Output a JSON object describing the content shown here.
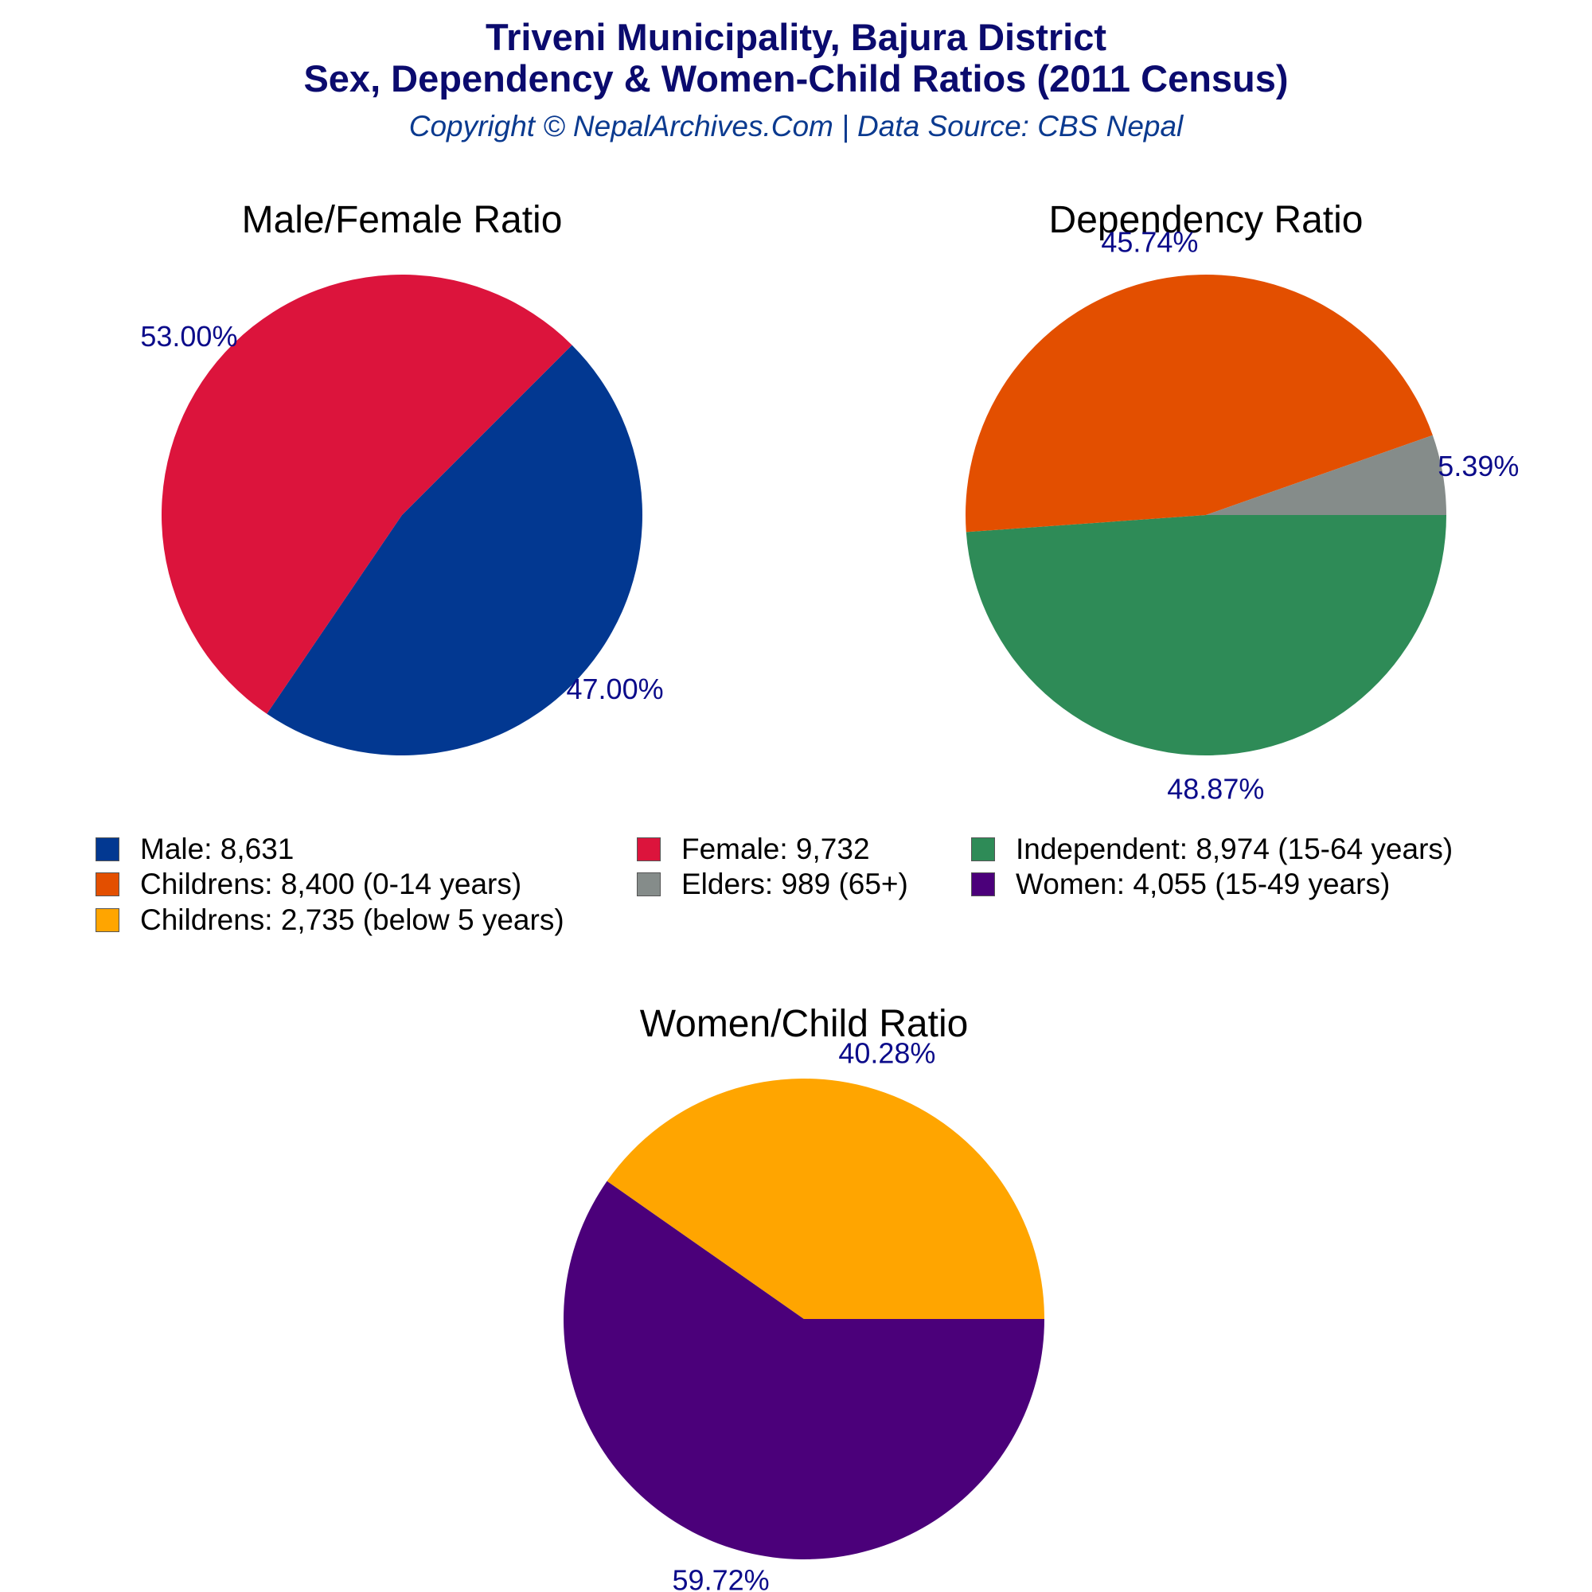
{
  "header": {
    "title_line1": "Triveni Municipality, Bajura District",
    "title_line2": "Sex, Dependency & Women-Child Ratios (2011 Census)",
    "subtitle": "Copyright © NepalArchives.Com | Data Source: CBS Nepal"
  },
  "colors": {
    "title": "#0b0b6e",
    "subtitle": "#0b3a8f",
    "pct_label": "#0b0b8a"
  },
  "chart_data": [
    {
      "type": "pie",
      "title": "Male/Female Ratio",
      "slices": [
        {
          "label": "Male",
          "value": 8631,
          "pct_label": "47.00%",
          "color": "#023891"
        },
        {
          "label": "Female",
          "value": 9732,
          "pct_label": "53.00%",
          "color": "#dc143c"
        }
      ]
    },
    {
      "type": "pie",
      "title": "Dependency Ratio",
      "slices": [
        {
          "label": "Independent",
          "value": 8974,
          "pct_label": "48.87%",
          "color": "#2e8b57"
        },
        {
          "label": "Childrens (0-14 years)",
          "value": 8400,
          "pct_label": "45.74%",
          "color": "#e34f00"
        },
        {
          "label": "Elders",
          "value": 989,
          "pct_label": "5.39%",
          "color": "#858c8a"
        }
      ]
    },
    {
      "type": "pie",
      "title": "Women/Child Ratio",
      "slices": [
        {
          "label": "Women",
          "value": 4055,
          "pct_label": "59.72%",
          "color": "#4b007a"
        },
        {
          "label": "Childrens (below 5 years)",
          "value": 2735,
          "pct_label": "40.28%",
          "color": "#ffa500"
        }
      ]
    }
  ],
  "legend": {
    "items": [
      {
        "text": "Male: 8,631",
        "color": "#023891"
      },
      {
        "text": "Female: 9,732",
        "color": "#dc143c"
      },
      {
        "text": "Independent: 8,974 (15-64 years)",
        "color": "#2e8b57"
      },
      {
        "text": "Childrens: 8,400 (0-14 years)",
        "color": "#e34f00"
      },
      {
        "text": "Elders: 989 (65+)",
        "color": "#858c8a"
      },
      {
        "text": "Women: 4,055 (15-49 years)",
        "color": "#4b007a"
      },
      {
        "text": "Childrens: 2,735 (below 5 years)",
        "color": "#ffa500"
      }
    ]
  }
}
